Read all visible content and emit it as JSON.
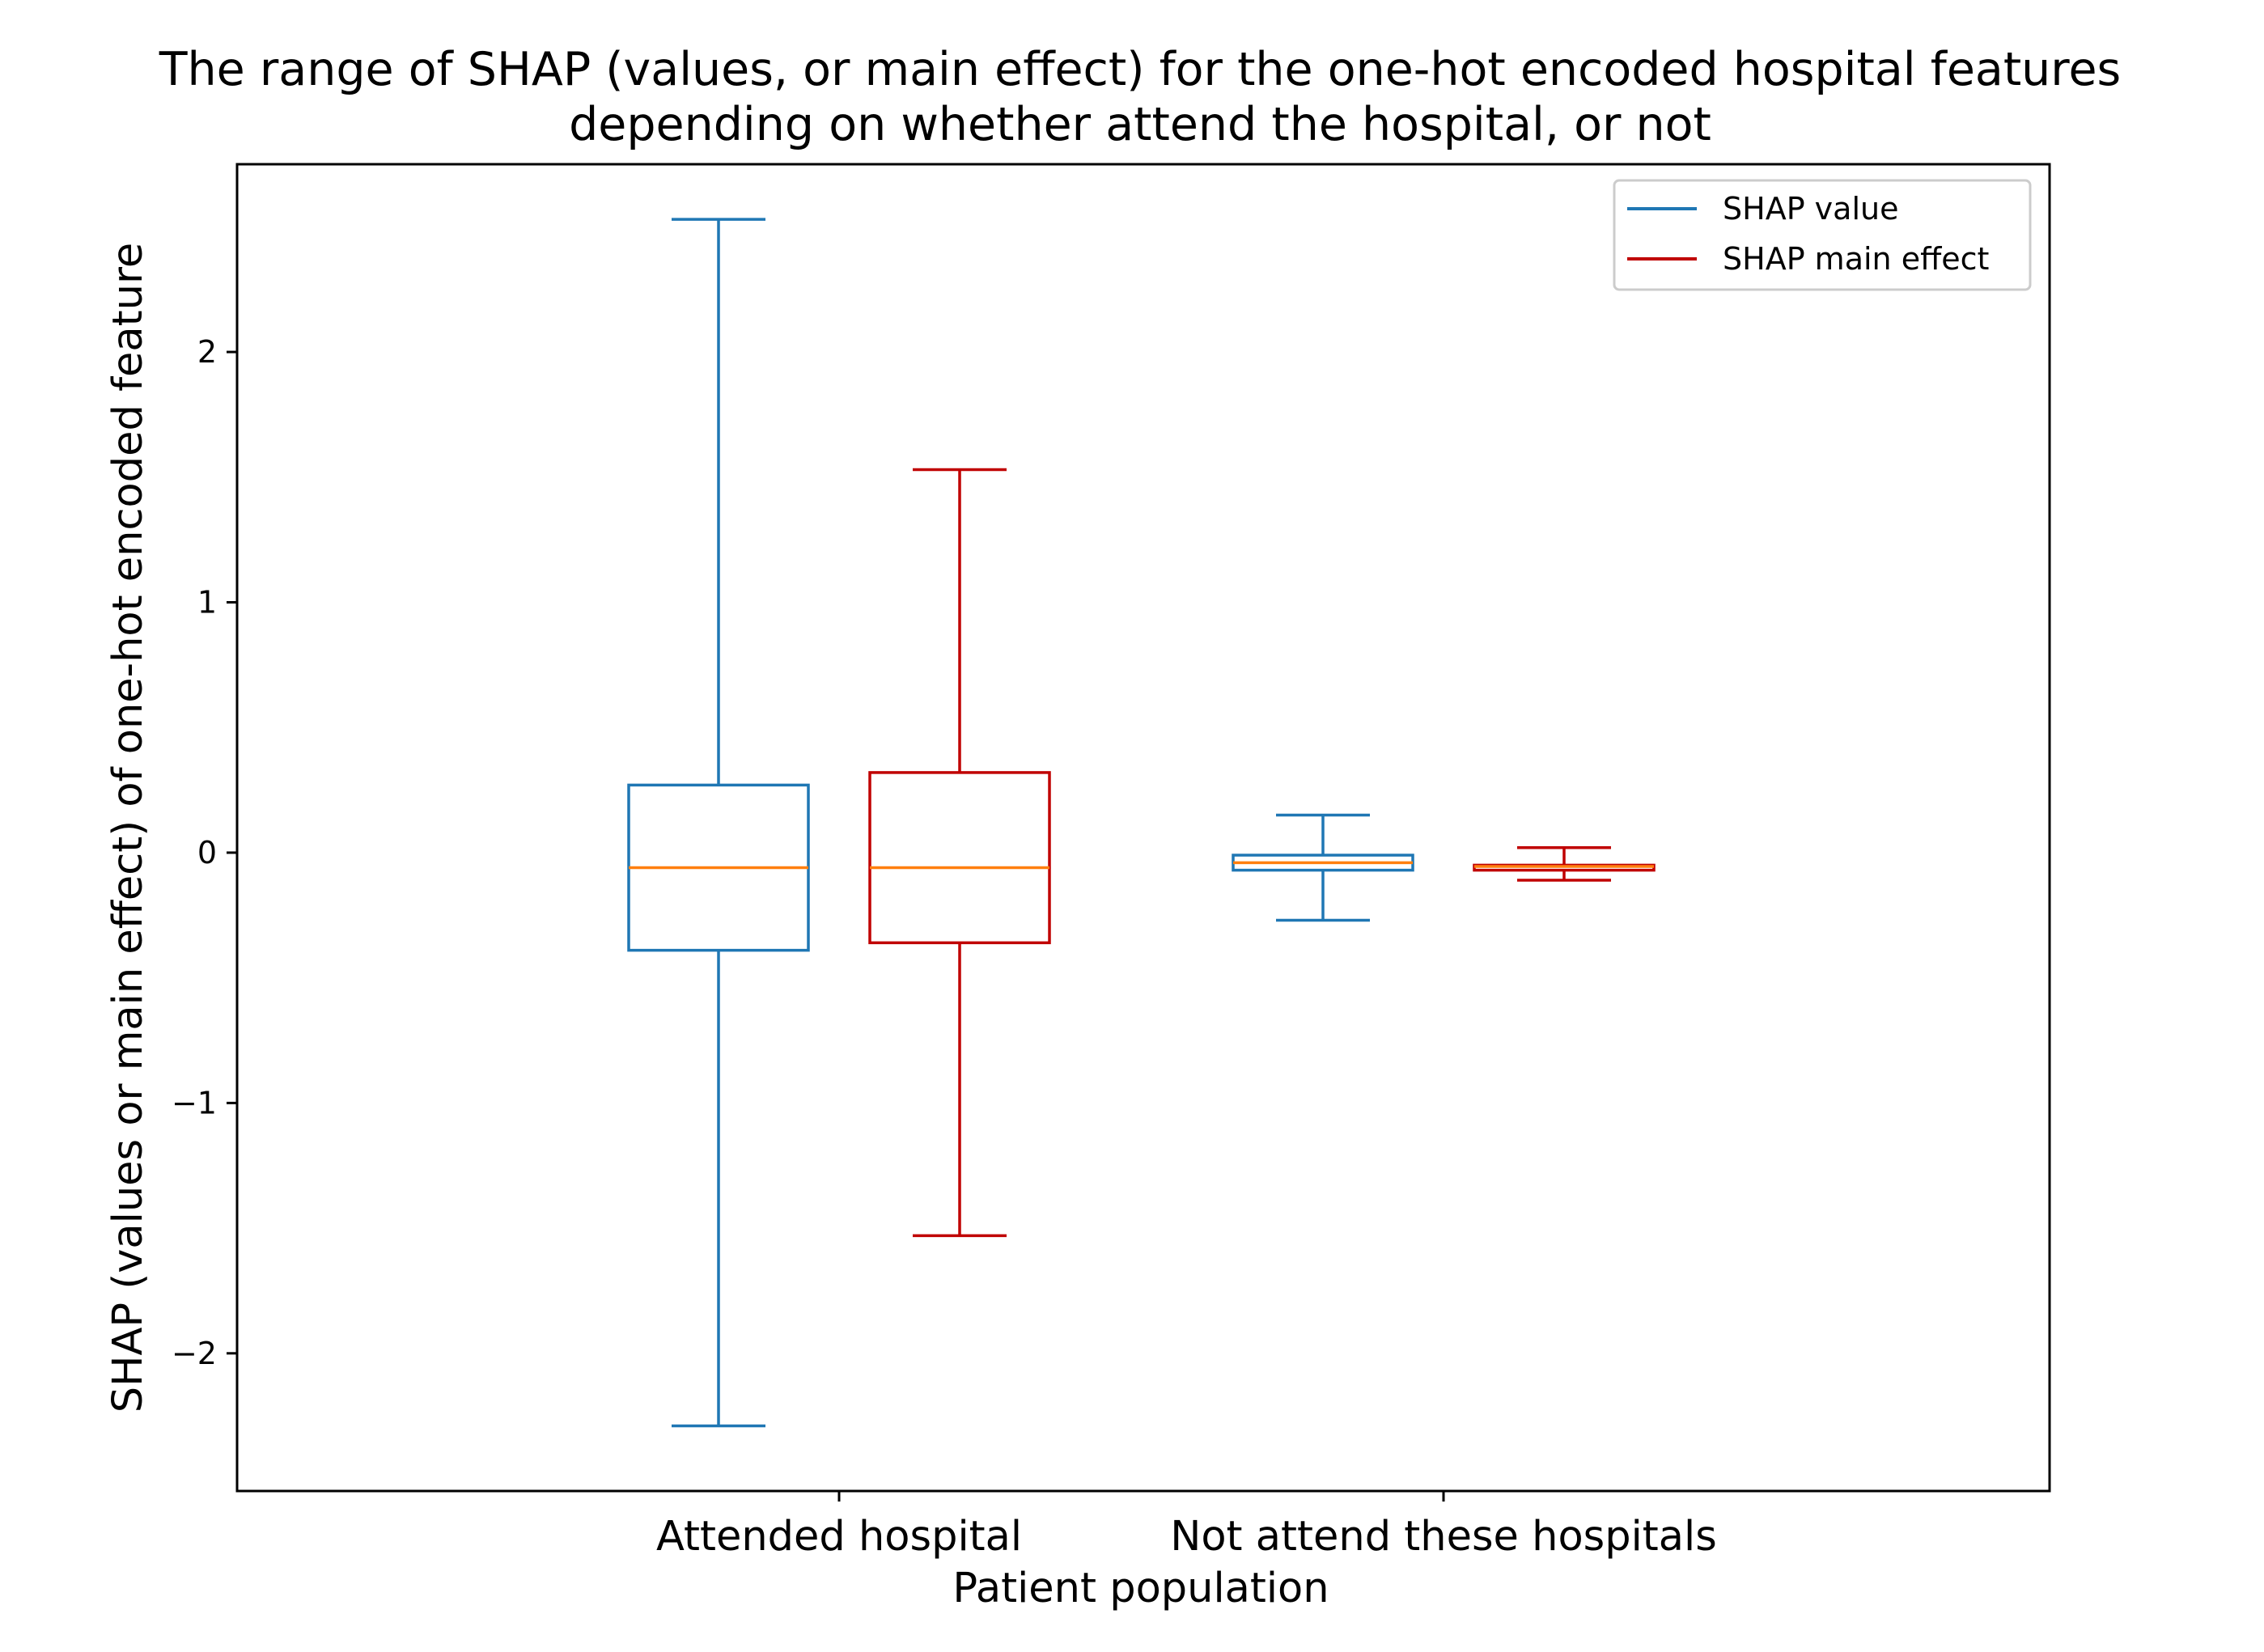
{
  "chart_data": {
    "type": "box",
    "title": [
      "The range of SHAP (values, or main effect) for the one-hot encoded  hospital features",
      "depending on whether attend the hospital, or not"
    ],
    "xlabel": "Patient population",
    "ylabel": "SHAP (values or main effect) of one-hot encoded feature",
    "categories": [
      "Attended hospital",
      "Not attend these hospitals"
    ],
    "ylim": [
      -2.55,
      2.75
    ],
    "yticks": [
      -2,
      -1,
      0,
      1,
      2
    ],
    "ytick_labels": [
      "−2",
      "−1",
      "0",
      "1",
      "2"
    ],
    "grid": false,
    "legend_position": "top-right",
    "median_color": "#ff7f0e",
    "series": [
      {
        "name": "SHAP value",
        "color": "#1f77b4",
        "boxes": [
          {
            "whisker_low": -2.29,
            "q1": -0.39,
            "median": -0.06,
            "q3": 0.27,
            "whisker_high": 2.53
          },
          {
            "whisker_low": -0.27,
            "q1": -0.07,
            "median": -0.04,
            "q3": -0.01,
            "whisker_high": 0.15
          }
        ]
      },
      {
        "name": "SHAP main effect",
        "color": "#c00000",
        "boxes": [
          {
            "whisker_low": -1.53,
            "q1": -0.36,
            "median": -0.06,
            "q3": 0.32,
            "whisker_high": 1.53
          },
          {
            "whisker_low": -0.11,
            "q1": -0.07,
            "median": -0.055,
            "q3": -0.05,
            "whisker_high": 0.02
          }
        ]
      }
    ]
  }
}
